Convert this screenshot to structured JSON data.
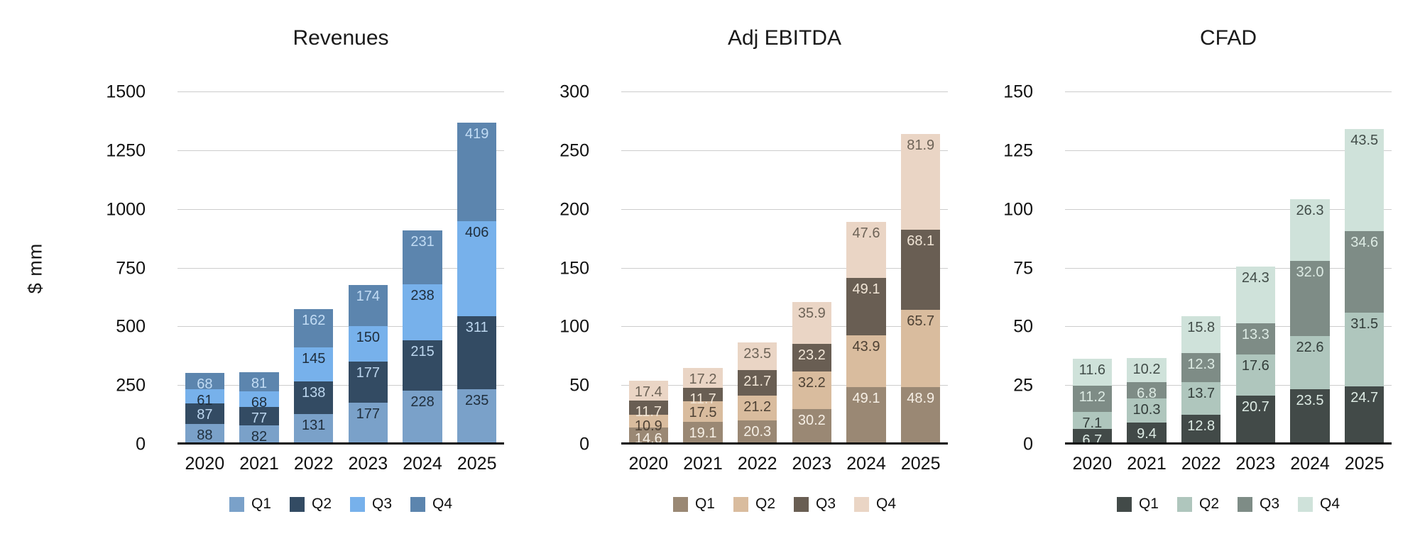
{
  "y_axis_unit": "$ mm",
  "style": {
    "background": "#ffffff",
    "gridline_color": "#cdcdcd",
    "axis_line_color": "#0a0a0a",
    "text_color": "#1a1a1a"
  },
  "chart_data": [
    {
      "type": "bar",
      "stacked": true,
      "title": "Revenues",
      "ylabel": "$ mm",
      "categories": [
        "2020",
        "2021",
        "2022",
        "2023",
        "2024",
        "2025"
      ],
      "yticks": [
        0,
        250,
        500,
        750,
        1000,
        1250,
        1500
      ],
      "ylim": [
        0,
        1500
      ],
      "grid": true,
      "legend_position": "bottom",
      "series": [
        {
          "name": "Q1",
          "color": "#7AA1C9",
          "label_color": "#1F2E3C",
          "values": [
            "88",
            "82",
            "131",
            "177",
            "228",
            "235"
          ]
        },
        {
          "name": "Q2",
          "color": "#334B63",
          "label_color": "#BCD6EE",
          "values": [
            "87",
            "77",
            "138",
            "177",
            "215",
            "311"
          ]
        },
        {
          "name": "Q3",
          "color": "#77B1EB",
          "label_color": "#1F2E3C",
          "values": [
            "61",
            "68",
            "145",
            "150",
            "238",
            "406"
          ]
        },
        {
          "name": "Q4",
          "color": "#5C85AE",
          "label_color": "#C2DCF4",
          "values": [
            "68",
            "81",
            "162",
            "174",
            "231",
            "419"
          ]
        }
      ]
    },
    {
      "type": "bar",
      "stacked": true,
      "title": "Adj EBITDA",
      "ylabel": "$ mm",
      "categories": [
        "2020",
        "2021",
        "2022",
        "2023",
        "2024",
        "2025"
      ],
      "yticks": [
        0,
        50,
        100,
        150,
        200,
        250,
        300
      ],
      "ylim": [
        0,
        300
      ],
      "grid": true,
      "legend_position": "bottom",
      "series": [
        {
          "name": "Q1",
          "color": "#9A8874",
          "label_color": "#F6EFE5",
          "values": [
            "14.6",
            "19.1",
            "20.3",
            "30.2",
            "49.1",
            "48.9"
          ]
        },
        {
          "name": "Q2",
          "color": "#D9BC9E",
          "label_color": "#4D4134",
          "values": [
            "10.9",
            "17.5",
            "21.2",
            "32.2",
            "43.9",
            "65.7"
          ]
        },
        {
          "name": "Q3",
          "color": "#695E53",
          "label_color": "#F1E5D6",
          "values": [
            "11.7",
            "11.7",
            "21.7",
            "23.2",
            "49.1",
            "68.1"
          ]
        },
        {
          "name": "Q4",
          "color": "#EAD5C5",
          "label_color": "#6D6357",
          "values": [
            "17.4",
            "17.2",
            "23.5",
            "35.9",
            "47.6",
            "81.9"
          ]
        }
      ]
    },
    {
      "type": "bar",
      "stacked": true,
      "title": "CFAD",
      "ylabel": "$ mm",
      "categories": [
        "2020",
        "2021",
        "2022",
        "2023",
        "2024",
        "2025"
      ],
      "yticks": [
        0,
        25,
        50,
        75,
        100,
        125,
        150
      ],
      "ylim": [
        0,
        150
      ],
      "grid": true,
      "legend_position": "bottom",
      "series": [
        {
          "name": "Q1",
          "color": "#424A48",
          "label_color": "#DDEBE4",
          "values": [
            "6.7",
            "9.4",
            "12.8",
            "20.7",
            "23.5",
            "24.7"
          ]
        },
        {
          "name": "Q2",
          "color": "#AFC6BD",
          "label_color": "#333D3A",
          "values": [
            "7.1",
            "10.3",
            "13.7",
            "17.6",
            "22.6",
            "31.5"
          ]
        },
        {
          "name": "Q3",
          "color": "#7E8C86",
          "label_color": "#DDEBE4",
          "values": [
            "11.2",
            "6.8",
            "12.3",
            "13.3",
            "32.0",
            "34.6"
          ]
        },
        {
          "name": "Q4",
          "color": "#CFE2DA",
          "label_color": "#424D49",
          "values": [
            "11.6",
            "10.2",
            "15.8",
            "24.3",
            "26.3",
            "43.5"
          ]
        }
      ]
    }
  ]
}
